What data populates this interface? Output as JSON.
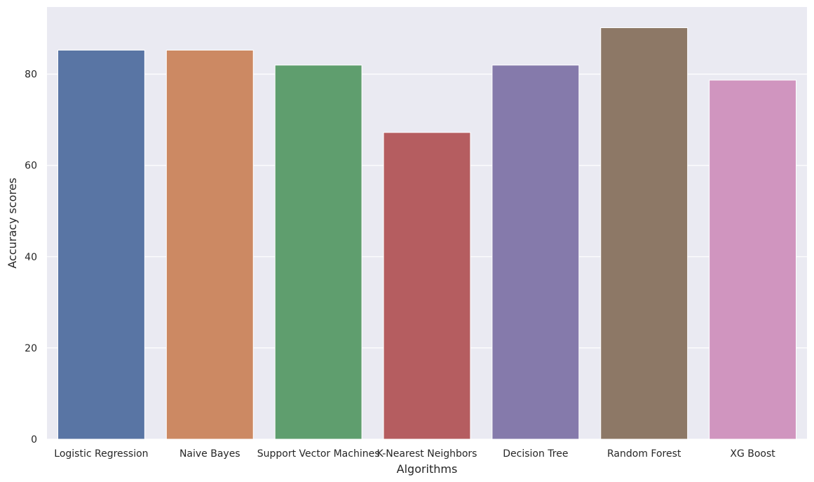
{
  "chart_data": {
    "type": "bar",
    "title": "",
    "xlabel": "Algorithms",
    "ylabel": "Accuracy scores",
    "categories": [
      "Logistic Regression",
      "Naive Bayes",
      "Support Vector Machines",
      "K-Nearest Neighbors",
      "Decision Tree",
      "Random Forest",
      "XG Boost"
    ],
    "values": [
      85.25,
      85.25,
      81.97,
      67.21,
      81.97,
      90.16,
      78.69
    ],
    "ylim": [
      0,
      94.7
    ],
    "yticks": [
      0,
      20,
      40,
      60,
      80
    ],
    "grid": true,
    "legend": "none",
    "colors": [
      "#5975a4",
      "#cc8963",
      "#5f9e6e",
      "#b55d60",
      "#857aab",
      "#8d7866",
      "#d095bf"
    ],
    "background": "#eaeaf2",
    "grid_color": "#ffffff"
  }
}
